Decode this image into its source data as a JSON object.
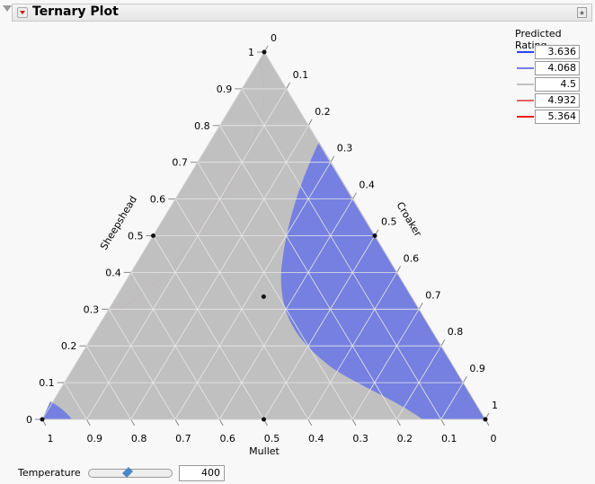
{
  "header": {
    "title": "Ternary Plot"
  },
  "chart_data": {
    "type": "ternary contour",
    "components": {
      "top": "Sheepshead",
      "right": "Croaker",
      "bottom": "Mullet"
    },
    "ticks": [
      "0",
      "0.1",
      "0.2",
      "0.3",
      "0.4",
      "0.5",
      "0.6",
      "0.7",
      "0.8",
      "0.9",
      "1"
    ],
    "tick_values": [
      0,
      0.1,
      0.2,
      0.3,
      0.4,
      0.5,
      0.6,
      0.7,
      0.8,
      0.9,
      1
    ],
    "design_points": [
      {
        "Sheepshead": 1,
        "Croaker": 0,
        "Mullet": 0
      },
      {
        "Sheepshead": 0,
        "Croaker": 0,
        "Mullet": 1
      },
      {
        "Sheepshead": 0,
        "Croaker": 1,
        "Mullet": 0
      },
      {
        "Sheepshead": 0.5,
        "Croaker": 0,
        "Mullet": 0.5
      },
      {
        "Sheepshead": 0.5,
        "Croaker": 0.5,
        "Mullet": 0
      },
      {
        "Sheepshead": 0,
        "Croaker": 0.5,
        "Mullet": 0.5
      },
      {
        "Sheepshead": 0.333,
        "Croaker": 0.333,
        "Mullet": 0.333
      }
    ],
    "grid": true,
    "region_colors": {
      "high": "#e06666",
      "mid": "#c0c0c0",
      "low": "#7580e0"
    }
  },
  "legend": {
    "title": "Predicted Rating",
    "items": [
      {
        "value": "3.636",
        "color": "#2a45f5"
      },
      {
        "value": "4.068",
        "color": "#7580e0"
      },
      {
        "value": "4.5",
        "color": "#c0c0c0"
      },
      {
        "value": "4.932",
        "color": "#e06666"
      },
      {
        "value": "5.364",
        "color": "#f21a1a"
      }
    ]
  },
  "controls": {
    "temperature_label": "Temperature",
    "temperature_value": "400",
    "slider_fraction": 0.5
  }
}
